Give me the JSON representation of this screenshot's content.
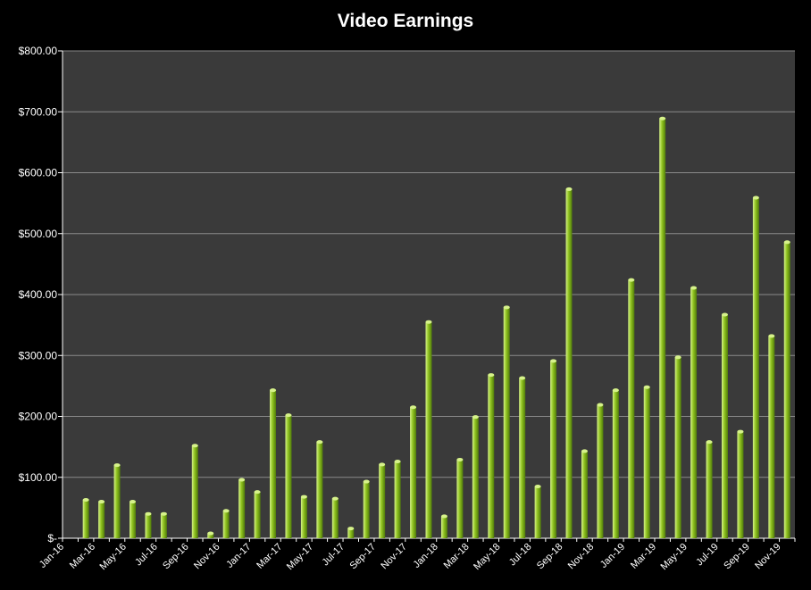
{
  "chart_data": {
    "type": "bar",
    "title": "Video Earnings",
    "xlabel": "",
    "ylabel": "",
    "ylim": [
      0,
      800
    ],
    "yticks": [
      0,
      100,
      200,
      300,
      400,
      500,
      600,
      700,
      800
    ],
    "ytick_labels": [
      "$-",
      "$100.00",
      "$200.00",
      "$300.00",
      "$400.00",
      "$500.00",
      "$600.00",
      "$700.00",
      "$800.00"
    ],
    "categories": [
      "Jan-16",
      "Feb-16",
      "Mar-16",
      "Apr-16",
      "May-16",
      "Jun-16",
      "Jul-16",
      "Aug-16",
      "Sep-16",
      "Oct-16",
      "Nov-16",
      "Dec-16",
      "Jan-17",
      "Feb-17",
      "Mar-17",
      "Apr-17",
      "May-17",
      "Jun-17",
      "Jul-17",
      "Aug-17",
      "Sep-17",
      "Oct-17",
      "Nov-17",
      "Dec-17",
      "Jan-18",
      "Feb-18",
      "Mar-18",
      "Apr-18",
      "May-18",
      "Jun-18",
      "Jul-18",
      "Aug-18",
      "Sep-18",
      "Oct-18",
      "Nov-18",
      "Dec-18",
      "Jan-19",
      "Feb-19",
      "Mar-19",
      "Apr-19",
      "May-19",
      "Jun-19",
      "Jul-19",
      "Aug-19",
      "Sep-19",
      "Oct-19",
      "Nov-19"
    ],
    "xtick_labels": [
      "Jan-16",
      "",
      "Mar-16",
      "",
      "May-16",
      "",
      "Jul-16",
      "",
      "Sep-16",
      "",
      "Nov-16",
      "",
      "Jan-17",
      "",
      "Mar-17",
      "",
      "May-17",
      "",
      "Jul-17",
      "",
      "Sep-17",
      "",
      "Nov-17",
      "",
      "Jan-18",
      "",
      "Mar-18",
      "",
      "May-18",
      "",
      "Jul-18",
      "",
      "Sep-18",
      "",
      "Nov-18",
      "",
      "Jan-19",
      "",
      "Mar-19",
      "",
      "May-19",
      "",
      "Jul-19",
      "",
      "Sep-19",
      "",
      "Nov-19"
    ],
    "values": [
      0,
      63,
      60,
      120,
      60,
      40,
      40,
      0,
      152,
      8,
      45,
      96,
      76,
      243,
      202,
      68,
      158,
      65,
      16,
      93,
      121,
      126,
      215,
      355,
      36,
      129,
      199,
      268,
      379,
      263,
      85,
      291,
      573,
      143,
      219,
      243,
      424,
      248,
      689,
      297,
      411,
      158,
      367,
      175,
      559,
      332,
      486
    ],
    "grid": true,
    "legend": "none",
    "colors": {
      "background": "#000000",
      "plot_area": "#3a3a3a",
      "gridline": "#8a8a8a",
      "bar_light": "#d6f28a",
      "bar_mid": "#8fc21f",
      "bar_dark": "#4f7a0a"
    }
  }
}
